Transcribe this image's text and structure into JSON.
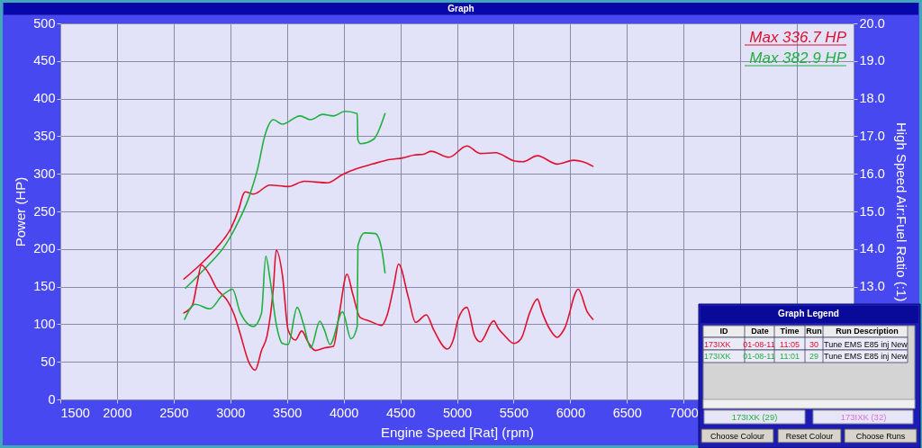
{
  "chart_data": {
    "type": "line",
    "title": "Graph",
    "xlabel": "Engine Speed [Rat] (rpm)",
    "ylabel": "Power (HP)",
    "y2label": "High Speed Air:Fuel Ratio (:1)",
    "xlim": [
      1500,
      8500
    ],
    "xticks": [
      1500,
      2000,
      2500,
      3000,
      3500,
      4000,
      4500,
      5000,
      5500,
      6000,
      6500,
      7000,
      {
        "value": 7500,
        "label": null
      },
      {
        "value": 8000,
        "label": null
      }
    ],
    "ylim": [
      0,
      500
    ],
    "yticks": [
      0,
      50,
      100,
      150,
      200,
      250,
      300,
      350,
      400,
      450,
      500
    ],
    "y2lim": [
      10,
      20
    ],
    "y2ticks": [
      {
        "value": 13,
        "label": "13.0"
      },
      {
        "value": 14,
        "label": "14.0"
      },
      {
        "value": 15,
        "label": "15.0"
      },
      {
        "value": 16,
        "label": "16.0"
      },
      {
        "value": 17,
        "label": "17.0"
      },
      {
        "value": 18,
        "label": "18.0"
      },
      {
        "value": 19,
        "label": "19.0"
      },
      {
        "value": 20,
        "label": "20.0"
      }
    ],
    "grid": true,
    "series": [
      {
        "color": "#e0102e",
        "x": [
          2590,
          2740,
          2875,
          3010,
          3075,
          3115,
          3130,
          3205,
          3350,
          3510,
          3655,
          3855,
          3990,
          4120,
          4255,
          4410,
          4520,
          4625,
          4705,
          4770,
          4930,
          5088,
          5205,
          5340,
          5510,
          5580,
          5710,
          5885,
          6030,
          6110,
          6200
        ],
        "values": [
          160,
          180,
          201,
          229,
          253,
          273,
          276,
          273,
          285,
          283,
          290,
          288,
          299,
          307,
          313,
          319,
          321,
          325,
          326,
          330,
          322,
          337,
          327,
          328,
          317,
          316,
          324,
          313,
          318,
          316,
          310
        ]
      },
      {
        "color": "#20b040",
        "x": [
          2605,
          2795,
          2955,
          3060,
          3165,
          3245,
          3300,
          3330,
          3380,
          3460,
          3615,
          3710,
          3815,
          3910,
          4010,
          4120,
          4126,
          4150,
          4265,
          4365
        ],
        "values": [
          148,
          177,
          205,
          233,
          269,
          309,
          348,
          362,
          372,
          366,
          377,
          372,
          379,
          377,
          383,
          380,
          345,
          340,
          346,
          380
        ]
      },
      {
        "color": "#e0102e",
        "axis": "y2",
        "x": [
          2590,
          2665,
          2705,
          2745,
          2820,
          2875,
          2980,
          3035,
          3085,
          3165,
          3220,
          3275,
          3325,
          3380,
          3405,
          3460,
          3510,
          3575,
          3630,
          3685,
          3750,
          3830,
          3910,
          3960,
          4030,
          4080,
          4145,
          4225,
          4335,
          4385,
          4440,
          4485,
          4570,
          4635,
          4730,
          4795,
          4915,
          4970,
          5010,
          5088,
          5155,
          5205,
          5325,
          5365,
          5420,
          5500,
          5565,
          5645,
          5710,
          5750,
          5815,
          5885,
          5950,
          6070,
          6150,
          6200
        ],
        "values": [
          12.3,
          12.5,
          13.05,
          13.57,
          13.3,
          12.97,
          12.6,
          12.25,
          11.77,
          10.98,
          10.78,
          11.3,
          11.7,
          12.97,
          13.97,
          13.3,
          11.85,
          11.58,
          11.82,
          11.53,
          11.3,
          11.37,
          11.41,
          12.25,
          13.33,
          12.81,
          12.18,
          12.09,
          11.97,
          12.25,
          12.97,
          13.6,
          12.73,
          12.05,
          12.25,
          11.85,
          11.34,
          11.61,
          12.13,
          12.45,
          11.7,
          11.53,
          12.09,
          11.89,
          11.7,
          11.49,
          11.61,
          12.33,
          12.67,
          12.33,
          11.89,
          11.65,
          11.89,
          12.93,
          12.33,
          12.13
        ]
      },
      {
        "color": "#20b040",
        "axis": "y2",
        "x": [
          2597,
          2690,
          2820,
          2930,
          3020,
          3085,
          3205,
          3275,
          3313,
          3350,
          3405,
          3460,
          3510,
          3590,
          3645,
          3710,
          3790,
          3830,
          3880,
          3990,
          4065,
          4120,
          4126,
          4185,
          4280,
          4335,
          4365
        ],
        "values": [
          12.13,
          12.53,
          12.41,
          12.77,
          12.93,
          12.33,
          11.94,
          12.29,
          13.81,
          13.21,
          12.01,
          11.49,
          11.46,
          12.45,
          12.01,
          11.37,
          12.08,
          11.85,
          11.46,
          12.33,
          11.61,
          11.94,
          14.09,
          14.43,
          14.41,
          14.01,
          13.37
        ]
      }
    ],
    "annotations": [
      "Max 336.7 HP",
      "Max 382.9 HP",
      "Graph Legend",
      "ID",
      "Date",
      "Time",
      "Run",
      "Run Description",
      "173IXK",
      "01-08-11",
      "11:05",
      "30",
      "Tune EMS E85 inj New",
      "173IXK",
      "01-08-11",
      "11:01",
      "29",
      "Tune EMS E85 inj New",
      "173IXK (29)",
      "173IXK (32)",
      "Choose Colour",
      "Reset Colour",
      "Choose Runs"
    ]
  }
}
